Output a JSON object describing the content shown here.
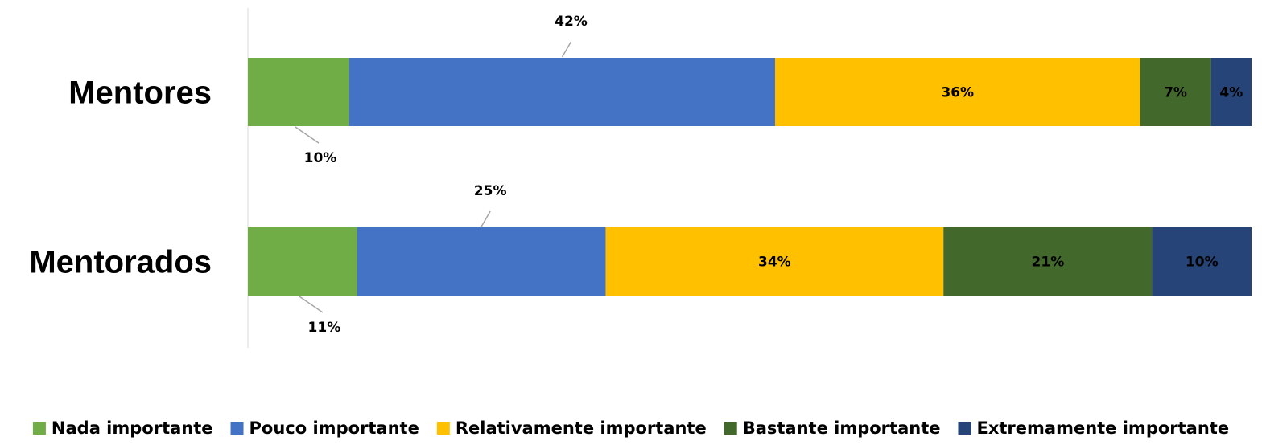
{
  "chart_data": {
    "type": "bar",
    "orientation": "horizontal",
    "stacked": true,
    "percent_stacked": true,
    "categories": [
      "Mentores",
      "Mentorados"
    ],
    "series": [
      {
        "name": "Nada importante",
        "color": "#70AD47",
        "values": [
          10,
          11
        ],
        "labels": [
          "10%",
          "11%"
        ]
      },
      {
        "name": "Pouco importante",
        "color": "#4472C4",
        "values": [
          42,
          25
        ],
        "labels": [
          "42%",
          "25%"
        ]
      },
      {
        "name": "Relativamente importante",
        "color": "#FFC000",
        "values": [
          36,
          34
        ],
        "labels": [
          "36%",
          "34%"
        ]
      },
      {
        "name": "Bastante importante",
        "color": "#43682B",
        "values": [
          7,
          21
        ],
        "labels": [
          "7%",
          "21%"
        ]
      },
      {
        "name": "Extremamente importante",
        "color": "#264478",
        "values": [
          4,
          10
        ],
        "labels": [
          "4%",
          "10%"
        ]
      }
    ],
    "xlim": [
      0,
      100
    ],
    "grid": false,
    "legend_position": "bottom"
  }
}
